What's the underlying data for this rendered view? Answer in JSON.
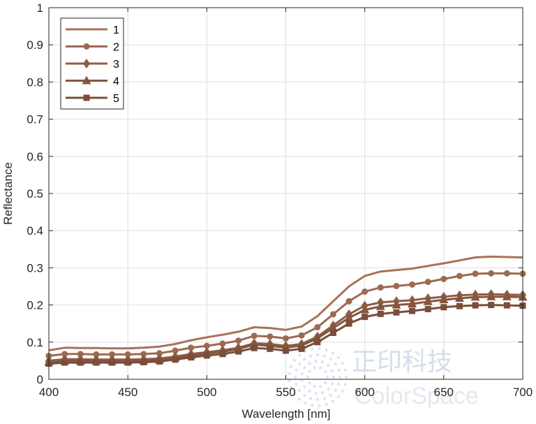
{
  "chart_data": {
    "type": "line",
    "xlabel": "Wavelength [nm]",
    "ylabel": "Reflectance",
    "xlim": [
      400,
      700
    ],
    "ylim": [
      0,
      1
    ],
    "xticks": [
      400,
      450,
      500,
      550,
      600,
      650,
      700
    ],
    "yticks": [
      0,
      0.1,
      0.2,
      0.3,
      0.4,
      0.5,
      0.6,
      0.7,
      0.8,
      0.9,
      1
    ],
    "grid": true,
    "legend_position": "top-left",
    "x": [
      400,
      410,
      420,
      430,
      440,
      450,
      460,
      470,
      480,
      490,
      500,
      510,
      520,
      530,
      540,
      550,
      560,
      570,
      580,
      590,
      600,
      610,
      620,
      630,
      640,
      650,
      660,
      670,
      680,
      690,
      700
    ],
    "series": [
      {
        "name": "1",
        "marker": "none",
        "color": "#a87256",
        "values": [
          0.078,
          0.085,
          0.084,
          0.084,
          0.083,
          0.083,
          0.085,
          0.088,
          0.095,
          0.105,
          0.113,
          0.12,
          0.128,
          0.14,
          0.138,
          0.133,
          0.142,
          0.17,
          0.21,
          0.25,
          0.278,
          0.29,
          0.294,
          0.298,
          0.305,
          0.312,
          0.32,
          0.328,
          0.33,
          0.329,
          0.328
        ]
      },
      {
        "name": "2",
        "marker": "circle",
        "color": "#9c6a50",
        "values": [
          0.063,
          0.068,
          0.068,
          0.067,
          0.067,
          0.067,
          0.068,
          0.07,
          0.077,
          0.085,
          0.09,
          0.096,
          0.104,
          0.117,
          0.115,
          0.11,
          0.118,
          0.14,
          0.175,
          0.21,
          0.236,
          0.247,
          0.251,
          0.255,
          0.262,
          0.27,
          0.278,
          0.284,
          0.285,
          0.285,
          0.284
        ]
      },
      {
        "name": "3",
        "marker": "diamond",
        "color": "#8e5d45",
        "values": [
          0.05,
          0.054,
          0.054,
          0.053,
          0.053,
          0.053,
          0.054,
          0.056,
          0.061,
          0.068,
          0.073,
          0.078,
          0.085,
          0.097,
          0.095,
          0.09,
          0.095,
          0.115,
          0.145,
          0.175,
          0.198,
          0.207,
          0.21,
          0.213,
          0.218,
          0.222,
          0.226,
          0.228,
          0.229,
          0.228,
          0.227
        ]
      },
      {
        "name": "4",
        "marker": "triangle",
        "color": "#84553f",
        "values": [
          0.046,
          0.049,
          0.049,
          0.049,
          0.049,
          0.049,
          0.05,
          0.052,
          0.058,
          0.064,
          0.07,
          0.074,
          0.082,
          0.093,
          0.09,
          0.085,
          0.091,
          0.11,
          0.138,
          0.165,
          0.187,
          0.196,
          0.2,
          0.203,
          0.209,
          0.214,
          0.218,
          0.221,
          0.222,
          0.222,
          0.221
        ]
      },
      {
        "name": "5",
        "marker": "square",
        "color": "#7a4e3a",
        "values": [
          0.042,
          0.045,
          0.045,
          0.045,
          0.045,
          0.045,
          0.046,
          0.048,
          0.053,
          0.059,
          0.064,
          0.068,
          0.075,
          0.084,
          0.082,
          0.077,
          0.082,
          0.1,
          0.125,
          0.15,
          0.168,
          0.176,
          0.18,
          0.184,
          0.189,
          0.194,
          0.197,
          0.199,
          0.2,
          0.199,
          0.198
        ]
      }
    ]
  },
  "watermark": {
    "cn": "正印科技",
    "en": "ColorSpace"
  }
}
